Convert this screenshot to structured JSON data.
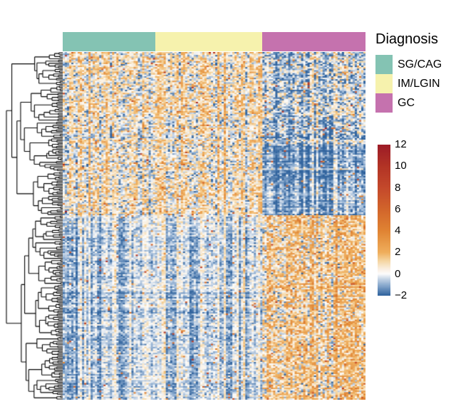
{
  "annotation_legend": {
    "title": "Diagnosis",
    "items": [
      {
        "label": "SG/CAG",
        "color": "#84C3B3"
      },
      {
        "label": "IM/LGIN",
        "color": "#F6F2AD"
      },
      {
        "label": "GC",
        "color": "#C572AE"
      }
    ]
  },
  "colorbar": {
    "tick_labels": [
      "12",
      "10",
      "8",
      "6",
      "4",
      "2",
      "0",
      "−2"
    ]
  },
  "chart_data": {
    "type": "heatmap",
    "title": "",
    "xlabel": "",
    "ylabel": "",
    "legend_title": "Diagnosis",
    "value_domain": [
      -2,
      12
    ],
    "colorbar_ticks": [
      12,
      10,
      8,
      6,
      4,
      2,
      0,
      -2
    ],
    "color_stops": [
      {
        "v": -2.0,
        "c": "#31649E"
      },
      {
        "v": -1.0,
        "c": "#8FAED1"
      },
      {
        "v": -0.5,
        "c": "#C2D2E5"
      },
      {
        "v": 0.0,
        "c": "#FDFDFC"
      },
      {
        "v": 0.5,
        "c": "#FAEEDD"
      },
      {
        "v": 1.2,
        "c": "#F5D6A2"
      },
      {
        "v": 2.0,
        "c": "#EFAE5C"
      },
      {
        "v": 4.0,
        "c": "#E08433"
      },
      {
        "v": 6.0,
        "c": "#D2652B"
      },
      {
        "v": 8.0,
        "c": "#C4492B"
      },
      {
        "v": 10.0,
        "c": "#B23425"
      },
      {
        "v": 12.0,
        "c": "#9D1C27"
      }
    ],
    "n_rows": 230,
    "n_cols": 141,
    "column_groups": [
      {
        "name": "SG/CAG",
        "fraction": 0.306,
        "color": "#84C3B3"
      },
      {
        "name": "IM/LGIN",
        "fraction": 0.353,
        "color": "#F6F2AD"
      },
      {
        "name": "GC",
        "fraction": 0.341,
        "color": "#C572AE"
      }
    ],
    "row_cluster_split": 0.47,
    "expression_blocks": [
      {
        "rows": [
          0.0,
          0.47
        ],
        "cols": [
          0.0,
          0.659
        ],
        "mean": 0.75,
        "sd": 1.05,
        "description": "up-regulated in SG/CAG and IM/LGIN rows (orange)"
      },
      {
        "rows": [
          0.0,
          0.27
        ],
        "cols": [
          0.659,
          1.0
        ],
        "mean": -0.55,
        "sd": 1.1,
        "description": "mildly down-regulated in GC (blue-striped)"
      },
      {
        "rows": [
          0.27,
          0.47
        ],
        "cols": [
          0.659,
          1.0
        ],
        "mean": -1.15,
        "sd": 0.6,
        "description": "strongly down-regulated block in GC (solid blue)"
      },
      {
        "rows": [
          0.47,
          1.0
        ],
        "cols": [
          0.0,
          0.659
        ],
        "mean": -0.4,
        "sd": 0.55,
        "description": "pale blue, mildly down in SG/CAG and IM/LGIN"
      },
      {
        "rows": [
          0.47,
          1.0
        ],
        "cols": [
          0.659,
          1.0
        ],
        "mean": 1.35,
        "sd": 1.25,
        "description": "up-regulated in GC (orange-striped)"
      }
    ],
    "texture": {
      "col_effect_sd": 0.45,
      "col_block_effect_sd": 0.4,
      "row_effect_sd": 0.33,
      "spike_prob": 0.015,
      "seed": 42
    }
  },
  "dendrogram": {
    "orientation": "left-of-rows",
    "leaves": 230,
    "color": "#000000",
    "root_split": 0.47,
    "seed": 7
  }
}
